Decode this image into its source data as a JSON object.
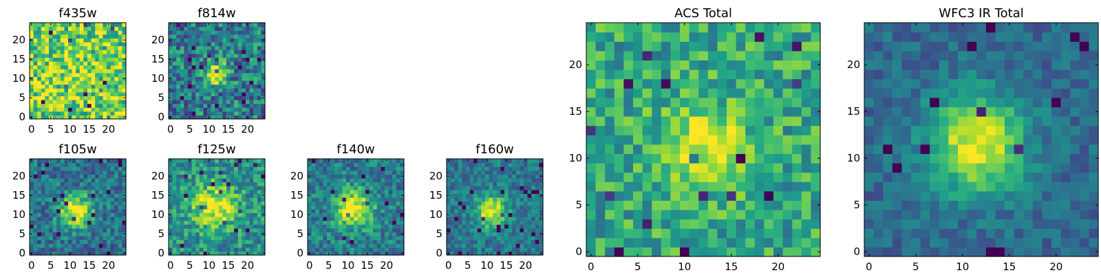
{
  "chart_data": [
    {
      "type": "heatmap",
      "title": "f435w",
      "colormap": "viridis",
      "grid_size": 25,
      "xlim": [
        0,
        24
      ],
      "ylim": [
        0,
        24
      ],
      "xticks": [
        0,
        5,
        10,
        15,
        20
      ],
      "yticks": [
        0,
        5,
        10,
        15,
        20
      ],
      "xtick_labels": [
        "0",
        "5",
        "10",
        "15",
        "20"
      ],
      "ytick_labels": [
        "0",
        "5",
        "10",
        "15",
        "20"
      ],
      "source": {
        "center": [
          12,
          11
        ],
        "amplitude": 0.05,
        "sigma": 4
      },
      "background": 0.78,
      "noise": 0.3,
      "seed": 11
    },
    {
      "type": "heatmap",
      "title": "f814w",
      "colormap": "viridis",
      "grid_size": 25,
      "xlim": [
        0,
        24
      ],
      "ylim": [
        0,
        24
      ],
      "xticks": [
        0,
        5,
        10,
        15,
        20
      ],
      "yticks": [
        0,
        5,
        10,
        15,
        20
      ],
      "xtick_labels": [
        "0",
        "5",
        "10",
        "15",
        "20"
      ],
      "ytick_labels": [
        "0",
        "5",
        "10",
        "15",
        "20"
      ],
      "source": {
        "center": [
          11.5,
          11.5
        ],
        "amplitude": 0.55,
        "sigma": 2.2
      },
      "background": 0.42,
      "noise": 0.28,
      "seed": 23
    },
    {
      "type": "heatmap",
      "title": "f105w",
      "colormap": "viridis",
      "grid_size": 25,
      "xlim": [
        0,
        24
      ],
      "ylim": [
        0,
        24
      ],
      "xticks": [
        0,
        5,
        10,
        15,
        20
      ],
      "yticks": [
        0,
        5,
        10,
        15,
        20
      ],
      "xtick_labels": [
        "0",
        "5",
        "10",
        "15",
        "20"
      ],
      "ytick_labels": [
        "0",
        "5",
        "10",
        "15",
        "20"
      ],
      "source": {
        "center": [
          11.5,
          11
        ],
        "amplitude": 0.65,
        "sigma": 3
      },
      "background": 0.38,
      "noise": 0.2,
      "seed": 37
    },
    {
      "type": "heatmap",
      "title": "f125w",
      "colormap": "viridis",
      "grid_size": 25,
      "xlim": [
        0,
        24
      ],
      "ylim": [
        0,
        24
      ],
      "xticks": [
        0,
        5,
        10,
        15,
        20
      ],
      "yticks": [
        0,
        5,
        10,
        15,
        20
      ],
      "xtick_labels": [
        "0",
        "5",
        "10",
        "15",
        "20"
      ],
      "ytick_labels": [
        "0",
        "5",
        "10",
        "15",
        "20"
      ],
      "source": {
        "center": [
          11.5,
          12
        ],
        "amplitude": 0.5,
        "sigma": 4
      },
      "background": 0.5,
      "noise": 0.22,
      "seed": 41
    },
    {
      "type": "heatmap",
      "title": "f140w",
      "colormap": "viridis",
      "grid_size": 25,
      "xlim": [
        0,
        24
      ],
      "ylim": [
        0,
        24
      ],
      "xticks": [
        0,
        5,
        10,
        15,
        20
      ],
      "yticks": [
        0,
        5,
        10,
        15,
        20
      ],
      "xtick_labels": [
        "0",
        "5",
        "10",
        "15",
        "20"
      ],
      "ytick_labels": [
        "0",
        "5",
        "10",
        "15",
        "20"
      ],
      "source": {
        "center": [
          11.5,
          11.5
        ],
        "amplitude": 0.6,
        "sigma": 3.5
      },
      "background": 0.42,
      "noise": 0.2,
      "seed": 53
    },
    {
      "type": "heatmap",
      "title": "f160w",
      "colormap": "viridis",
      "grid_size": 25,
      "xlim": [
        0,
        24
      ],
      "ylim": [
        0,
        24
      ],
      "xticks": [
        0,
        5,
        10,
        15,
        20
      ],
      "yticks": [
        0,
        5,
        10,
        15,
        20
      ],
      "xtick_labels": [
        "0",
        "5",
        "10",
        "15",
        "20"
      ],
      "ytick_labels": [
        "0",
        "5",
        "10",
        "15",
        "20"
      ],
      "source": {
        "center": [
          11,
          11
        ],
        "amplitude": 0.6,
        "sigma": 2.8
      },
      "background": 0.4,
      "noise": 0.16,
      "seed": 67
    },
    {
      "type": "heatmap",
      "title": "ACS Total",
      "colormap": "viridis",
      "grid_size": 25,
      "xlim": [
        0,
        24
      ],
      "ylim": [
        0,
        24
      ],
      "xticks": [
        0,
        5,
        10,
        15,
        20
      ],
      "yticks": [
        0,
        5,
        10,
        15,
        20
      ],
      "xtick_labels": [
        "0",
        "5",
        "10",
        "15",
        "20"
      ],
      "ytick_labels": [
        "0",
        "5",
        "10",
        "15",
        "20"
      ],
      "source": {
        "center": [
          12,
          11.5
        ],
        "amplitude": 0.4,
        "sigma": 3
      },
      "background": 0.6,
      "noise": 0.22,
      "seed": 79
    },
    {
      "type": "heatmap",
      "title": "WFC3 IR Total",
      "colormap": "viridis",
      "grid_size": 25,
      "xlim": [
        0,
        24
      ],
      "ylim": [
        0,
        24
      ],
      "xticks": [
        0,
        5,
        10,
        15,
        20
      ],
      "yticks": [
        0,
        5,
        10,
        15,
        20
      ],
      "xtick_labels": [
        "0",
        "5",
        "10",
        "15",
        "20"
      ],
      "ytick_labels": [
        "0",
        "5",
        "10",
        "15",
        "20"
      ],
      "source": {
        "center": [
          11.5,
          11.5
        ],
        "amplitude": 0.65,
        "sigma": 3.6
      },
      "background": 0.34,
      "noise": 0.12,
      "seed": 97
    }
  ]
}
